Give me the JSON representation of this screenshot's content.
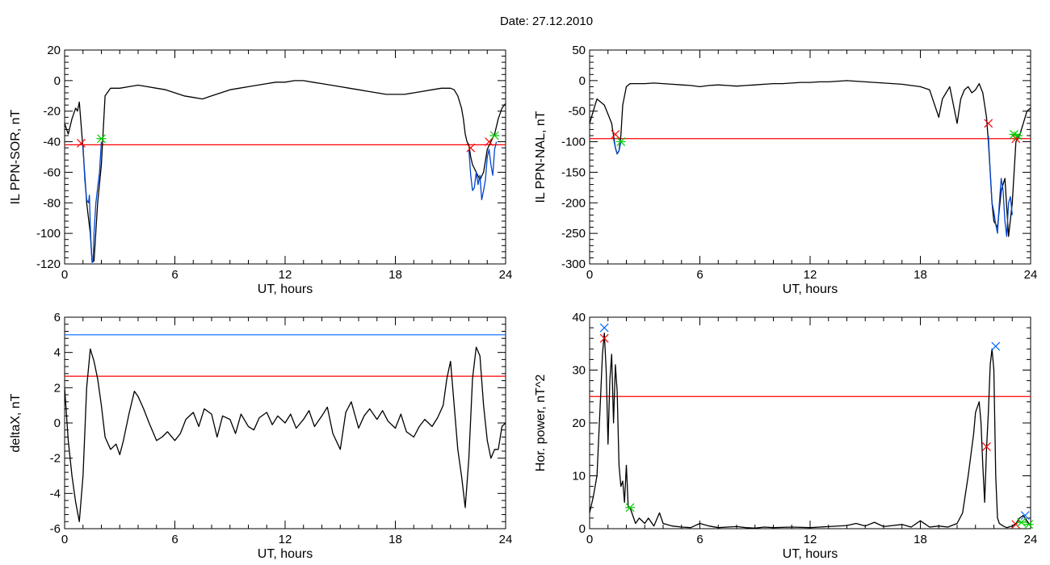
{
  "header": {
    "title": "Date:  27.12.2010"
  },
  "chart_data": [
    {
      "type": "line",
      "xlabel": "UT, hours",
      "ylabel": "IL PPN-SOR, nT",
      "xlim": [
        0,
        24
      ],
      "ylim": [
        -120,
        20
      ],
      "xticks": [
        0,
        6,
        12,
        18,
        24
      ],
      "yticks": [
        -120,
        -100,
        -80,
        -60,
        -40,
        -20,
        0,
        20
      ],
      "hlines": [
        {
          "y": -42,
          "color": "#ff0000"
        }
      ],
      "series": [
        {
          "color": "#000000",
          "x": [
            0,
            0.2,
            0.4,
            0.6,
            0.7,
            0.8,
            1.0,
            1.2,
            1.4,
            1.5,
            1.6,
            1.8,
            2.0,
            2.2,
            2.5,
            3.0,
            3.5,
            4.0,
            4.5,
            5.0,
            5.5,
            6.0,
            6.5,
            7.0,
            7.5,
            8.0,
            8.5,
            9.0,
            9.5,
            10.0,
            10.5,
            11.0,
            11.5,
            12.0,
            12.5,
            13.0,
            13.5,
            14.0,
            14.5,
            15.0,
            15.5,
            16.0,
            16.5,
            17.0,
            17.5,
            18.0,
            18.5,
            19.0,
            19.5,
            20.0,
            20.5,
            21.0,
            21.2,
            21.4,
            21.6,
            21.7,
            21.8,
            21.9,
            22.0,
            22.1,
            22.2,
            22.4,
            22.6,
            22.8,
            23.0,
            23.2,
            23.4,
            23.6,
            23.8,
            24.0
          ],
          "y": [
            -28,
            -35,
            -25,
            -18,
            -20,
            -14,
            -45,
            -80,
            -100,
            -119,
            -118,
            -80,
            -55,
            -10,
            -5,
            -5,
            -4,
            -3,
            -4,
            -5,
            -6,
            -8,
            -10,
            -11,
            -12,
            -10,
            -8,
            -6,
            -5,
            -4,
            -3,
            -2,
            -1,
            -1,
            0,
            0,
            -1,
            -2,
            -3,
            -4,
            -5,
            -6,
            -7,
            -8,
            -9,
            -9,
            -9,
            -8,
            -7,
            -6,
            -5,
            -5,
            -6,
            -10,
            -18,
            -25,
            -35,
            -40,
            -42,
            -50,
            -55,
            -60,
            -65,
            -60,
            -45,
            -40,
            -35,
            -25,
            -18,
            -15
          ]
        },
        {
          "color": "#0044cc",
          "x": [
            1.0,
            1.1,
            1.2,
            1.3,
            1.35,
            1.4,
            1.45,
            1.5,
            1.55,
            1.6,
            1.7,
            1.8,
            1.9,
            2.0
          ],
          "y": [
            -42,
            -65,
            -78,
            -80,
            -75,
            -95,
            -110,
            -119,
            -118,
            -100,
            -80,
            -70,
            -60,
            -40
          ]
        },
        {
          "color": "#0044cc",
          "x": [
            22.0,
            22.1,
            22.2,
            22.3,
            22.4,
            22.5,
            22.6,
            22.7,
            22.8,
            22.9,
            23.0,
            23.1,
            23.2,
            23.3,
            23.4,
            23.5
          ],
          "y": [
            -45,
            -62,
            -72,
            -70,
            -60,
            -68,
            -62,
            -78,
            -72,
            -65,
            -50,
            -45,
            -55,
            -62,
            -45,
            -40
          ]
        }
      ],
      "markers": [
        {
          "x": 0.9,
          "y": -41,
          "color": "#ff0000",
          "symbol": "x"
        },
        {
          "x": 22.1,
          "y": -44,
          "color": "#ff0000",
          "symbol": "x"
        },
        {
          "x": 23.1,
          "y": -40,
          "color": "#ff0000",
          "symbol": "x"
        },
        {
          "x": 2.0,
          "y": -38,
          "color": "#00cc00",
          "symbol": "asterisk"
        },
        {
          "x": 23.4,
          "y": -36,
          "color": "#00cc00",
          "symbol": "asterisk"
        }
      ]
    },
    {
      "type": "line",
      "xlabel": "UT, hours",
      "ylabel": "IL PPN-NAL, nT",
      "xlim": [
        0,
        24
      ],
      "ylim": [
        -300,
        50
      ],
      "xticks": [
        0,
        6,
        12,
        18,
        24
      ],
      "yticks": [
        -300,
        -250,
        -200,
        -150,
        -100,
        -50,
        0,
        50
      ],
      "hlines": [
        {
          "y": -95,
          "color": "#ff0000"
        }
      ],
      "series": [
        {
          "color": "#000000",
          "x": [
            0,
            0.2,
            0.4,
            0.6,
            0.8,
            1.0,
            1.2,
            1.3,
            1.4,
            1.5,
            1.6,
            1.7,
            1.8,
            2.0,
            2.2,
            2.5,
            3.0,
            3.5,
            4.0,
            4.5,
            5.0,
            5.5,
            6.0,
            6.5,
            7.0,
            7.5,
            8.0,
            8.5,
            9.0,
            9.5,
            10.0,
            10.5,
            11.0,
            11.5,
            12.0,
            12.5,
            13.0,
            13.5,
            14.0,
            14.5,
            15.0,
            15.5,
            16.0,
            16.5,
            17.0,
            17.5,
            18.0,
            18.5,
            19.0,
            19.2,
            19.4,
            19.6,
            20.0,
            20.2,
            20.4,
            20.6,
            20.8,
            21.0,
            21.2,
            21.4,
            21.6,
            21.7,
            21.8,
            21.9,
            22.0,
            22.2,
            22.4,
            22.6,
            22.8,
            23.0,
            23.2,
            23.4,
            23.6,
            23.8,
            24.0
          ],
          "y": [
            -70,
            -50,
            -30,
            -35,
            -40,
            -55,
            -70,
            -90,
            -110,
            -120,
            -115,
            -90,
            -40,
            -10,
            -5,
            -5,
            -5,
            -4,
            -5,
            -6,
            -7,
            -8,
            -10,
            -8,
            -7,
            -8,
            -9,
            -8,
            -7,
            -6,
            -5,
            -5,
            -4,
            -3,
            -3,
            -2,
            -2,
            -1,
            0,
            -1,
            -2,
            -3,
            -4,
            -5,
            -6,
            -8,
            -10,
            -15,
            -60,
            -30,
            -20,
            -10,
            -70,
            -30,
            -15,
            -10,
            -20,
            -15,
            -5,
            -20,
            -60,
            -100,
            -150,
            -200,
            -230,
            -240,
            -180,
            -160,
            -255,
            -200,
            -100,
            -90,
            -70,
            -50,
            -45
          ]
        },
        {
          "color": "#0044cc",
          "x": [
            1.3,
            1.4,
            1.5,
            1.6,
            1.7
          ],
          "y": [
            -95,
            -110,
            -120,
            -115,
            -100
          ]
        },
        {
          "color": "#0044cc",
          "x": [
            21.7,
            21.8,
            21.9,
            22.0,
            22.1,
            22.2,
            22.3,
            22.4,
            22.5,
            22.6,
            22.7,
            22.8,
            22.9,
            23.0
          ],
          "y": [
            -90,
            -150,
            -200,
            -215,
            -235,
            -250,
            -200,
            -160,
            -180,
            -230,
            -255,
            -200,
            -190,
            -220
          ]
        }
      ],
      "markers": [
        {
          "x": 1.4,
          "y": -88,
          "color": "#ff0000",
          "symbol": "x"
        },
        {
          "x": 21.7,
          "y": -70,
          "color": "#ff0000",
          "symbol": "x"
        },
        {
          "x": 23.2,
          "y": -95,
          "color": "#ff0000",
          "symbol": "x"
        },
        {
          "x": 1.7,
          "y": -100,
          "color": "#00cc00",
          "symbol": "asterisk"
        },
        {
          "x": 23.1,
          "y": -88,
          "color": "#00cc00",
          "symbol": "asterisk"
        },
        {
          "x": 23.3,
          "y": -90,
          "color": "#00cc00",
          "symbol": "asterisk"
        }
      ]
    },
    {
      "type": "line",
      "xlabel": "UT, hours",
      "ylabel": "deltaX, nT",
      "xlim": [
        0,
        24
      ],
      "ylim": [
        -6,
        6
      ],
      "xticks": [
        0,
        6,
        12,
        18,
        24
      ],
      "yticks": [
        -6,
        -4,
        -2,
        0,
        2,
        4,
        6
      ],
      "hlines": [
        {
          "y": 5.0,
          "color": "#0066ff"
        },
        {
          "y": 2.65,
          "color": "#ff0000"
        }
      ],
      "series": [
        {
          "color": "#000000",
          "x": [
            0,
            0.2,
            0.4,
            0.6,
            0.8,
            1.0,
            1.2,
            1.4,
            1.6,
            1.8,
            2.0,
            2.2,
            2.5,
            2.8,
            3.0,
            3.2,
            3.5,
            3.8,
            4.0,
            4.3,
            4.6,
            5.0,
            5.3,
            5.6,
            6.0,
            6.3,
            6.6,
            7.0,
            7.3,
            7.6,
            8.0,
            8.3,
            8.6,
            9.0,
            9.3,
            9.6,
            10.0,
            10.3,
            10.6,
            11.0,
            11.3,
            11.6,
            12.0,
            12.3,
            12.6,
            13.0,
            13.3,
            13.6,
            14.0,
            14.3,
            14.6,
            15.0,
            15.3,
            15.6,
            16.0,
            16.3,
            16.6,
            17.0,
            17.3,
            17.6,
            18.0,
            18.3,
            18.6,
            19.0,
            19.3,
            19.6,
            20.0,
            20.3,
            20.6,
            20.8,
            21.0,
            21.2,
            21.4,
            21.6,
            21.8,
            22.0,
            22.2,
            22.4,
            22.6,
            22.8,
            23.0,
            23.2,
            23.4,
            23.6,
            23.8,
            24.0
          ],
          "y": [
            2.0,
            -1.0,
            -3.0,
            -4.5,
            -5.6,
            -3.0,
            2.0,
            4.2,
            3.5,
            2.5,
            1.0,
            -0.8,
            -1.5,
            -1.2,
            -1.8,
            -1.0,
            0.5,
            1.8,
            1.5,
            0.8,
            0.0,
            -1.0,
            -0.8,
            -0.5,
            -1.0,
            -0.6,
            0.2,
            0.6,
            -0.2,
            0.8,
            0.5,
            -0.8,
            0.4,
            0.2,
            -0.6,
            0.5,
            -0.2,
            -0.4,
            0.3,
            0.6,
            -0.1,
            0.4,
            0.0,
            0.5,
            -0.3,
            0.2,
            0.7,
            -0.2,
            0.4,
            0.9,
            -0.6,
            -1.5,
            0.6,
            1.2,
            -0.3,
            0.4,
            0.8,
            0.2,
            0.7,
            0.1,
            -0.3,
            0.5,
            -0.5,
            -0.8,
            -0.2,
            0.2,
            -0.2,
            0.3,
            1.0,
            2.5,
            3.5,
            1.0,
            -1.5,
            -3.0,
            -4.8,
            -2.0,
            2.5,
            4.3,
            3.8,
            1.0,
            -1.0,
            -2.0,
            -1.5,
            -1.5,
            -0.2,
            0.0
          ]
        }
      ],
      "markers": []
    },
    {
      "type": "line",
      "xlabel": "UT, hours",
      "ylabel": "Hor. power, nT^2",
      "xlim": [
        0,
        24
      ],
      "ylim": [
        0,
        40
      ],
      "xticks": [
        0,
        6,
        12,
        18,
        24
      ],
      "yticks": [
        0,
        10,
        20,
        30,
        40
      ],
      "hlines": [
        {
          "y": 25,
          "color": "#ff0000"
        }
      ],
      "series": [
        {
          "color": "#000000",
          "x": [
            0,
            0.2,
            0.4,
            0.6,
            0.7,
            0.8,
            0.9,
            1.0,
            1.1,
            1.2,
            1.3,
            1.4,
            1.5,
            1.6,
            1.7,
            1.8,
            1.9,
            2.0,
            2.1,
            2.2,
            2.3,
            2.5,
            2.7,
            3.0,
            3.2,
            3.5,
            3.8,
            4.0,
            4.5,
            5.0,
            5.5,
            6.0,
            6.5,
            7.0,
            7.5,
            8.0,
            8.5,
            9.0,
            9.5,
            10.0,
            11.0,
            12.0,
            13.0,
            14.0,
            14.5,
            15.0,
            15.5,
            16.0,
            17.0,
            17.5,
            18.0,
            18.5,
            19.0,
            19.5,
            20.0,
            20.3,
            20.6,
            20.9,
            21.0,
            21.2,
            21.3,
            21.4,
            21.5,
            21.6,
            21.7,
            21.8,
            21.9,
            22.0,
            22.1,
            22.2,
            22.3,
            22.5,
            22.7,
            23.0,
            23.2,
            23.4,
            23.6,
            23.8,
            24.0
          ],
          "y": [
            3,
            6,
            10,
            25,
            33,
            37,
            30,
            16,
            28,
            33,
            20,
            31,
            26,
            12,
            8,
            9,
            5,
            12,
            4,
            4,
            3,
            1,
            2,
            1,
            2,
            0.5,
            3,
            1,
            0.5,
            0.3,
            0.2,
            1,
            0.5,
            0.2,
            0.3,
            0.4,
            0.2,
            0.1,
            0.3,
            0.2,
            0.3,
            0.2,
            0.4,
            0.6,
            1.0,
            0.5,
            1.2,
            0.4,
            0.8,
            0.3,
            1.5,
            0.3,
            0.5,
            0.3,
            1.0,
            3,
            10,
            18,
            22,
            24,
            20,
            12,
            5,
            15,
            22,
            31,
            34,
            30,
            10,
            2,
            1,
            0.5,
            0.2,
            0.5,
            1,
            2,
            2.5,
            1.5,
            0.5
          ]
        }
      ],
      "markers": [
        {
          "x": 0.8,
          "y": 36,
          "color": "#ff0000",
          "symbol": "x"
        },
        {
          "x": 0.8,
          "y": 38,
          "color": "#0066ff",
          "symbol": "x"
        },
        {
          "x": 21.6,
          "y": 15.5,
          "color": "#ff0000",
          "symbol": "x"
        },
        {
          "x": 22.1,
          "y": 34.5,
          "color": "#0066ff",
          "symbol": "x"
        },
        {
          "x": 23.2,
          "y": 0.8,
          "color": "#ff0000",
          "symbol": "x"
        },
        {
          "x": 23.7,
          "y": 2.5,
          "color": "#0066ff",
          "symbol": "x"
        },
        {
          "x": 2.2,
          "y": 4,
          "color": "#00cc00",
          "symbol": "asterisk"
        },
        {
          "x": 23.5,
          "y": 1.2,
          "color": "#00cc00",
          "symbol": "asterisk"
        },
        {
          "x": 23.9,
          "y": 0.8,
          "color": "#00cc00",
          "symbol": "asterisk"
        }
      ]
    }
  ]
}
